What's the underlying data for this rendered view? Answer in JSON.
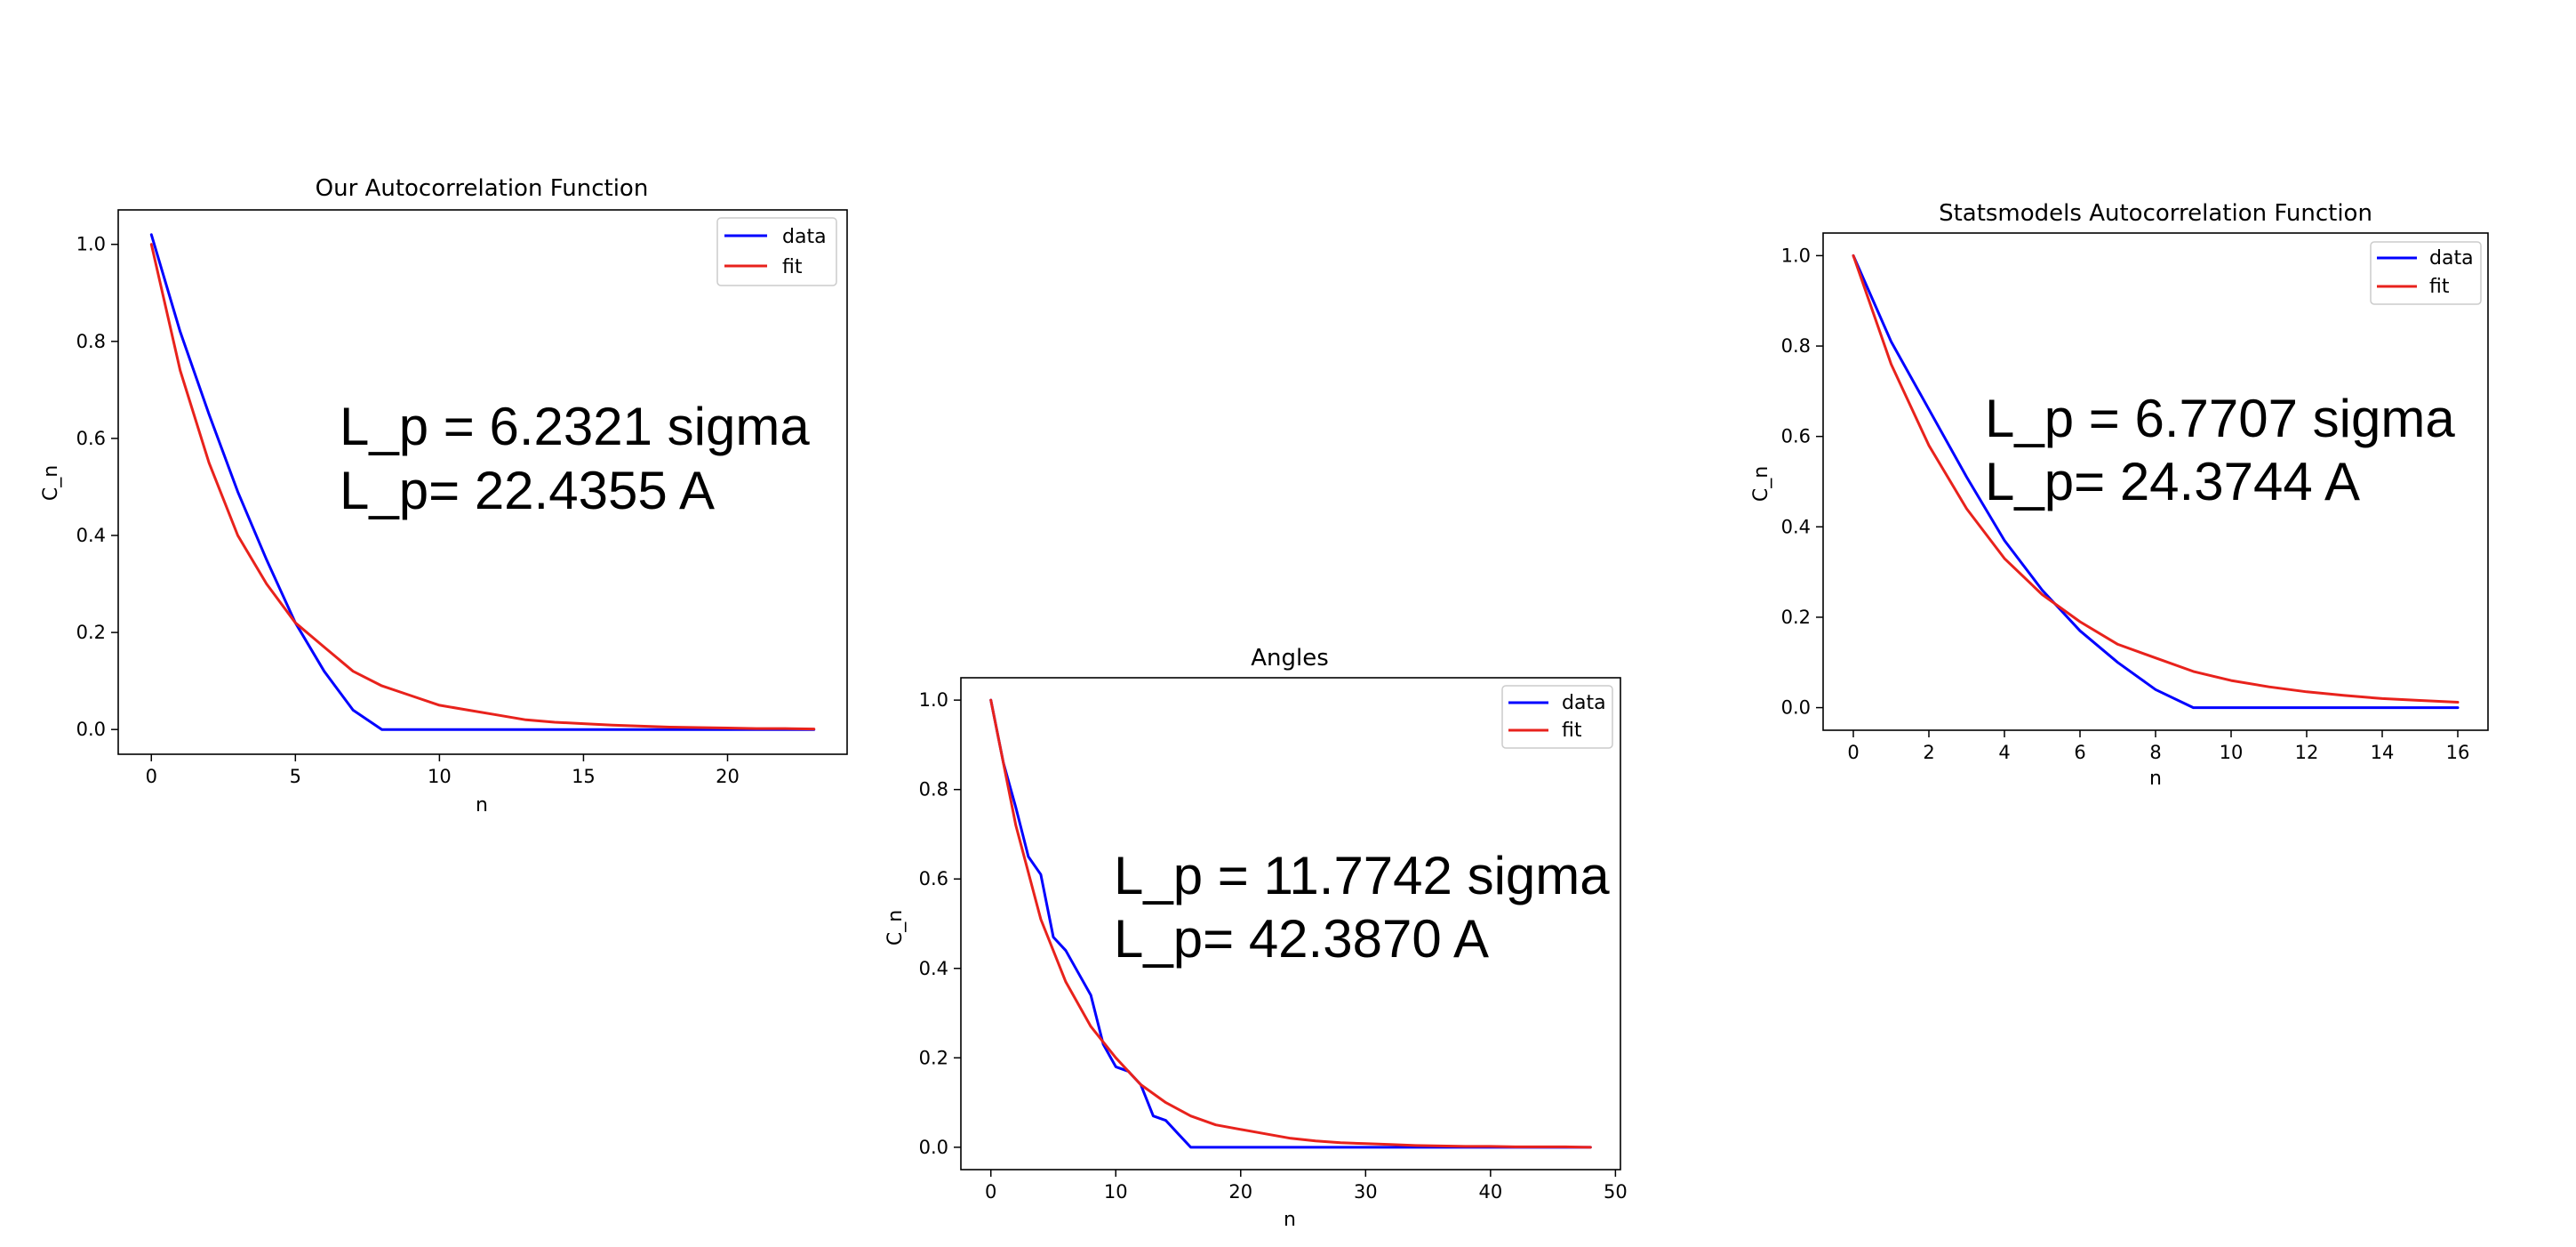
{
  "colors": {
    "data": "#0000ff",
    "fit": "#e8221c",
    "frame": "#000000",
    "background": "#ffffff"
  },
  "chart_data": [
    {
      "type": "line",
      "title": "Our Autocorrelation Function",
      "xlabel": "n",
      "ylabel": "C_n",
      "xlim": [
        -1.15,
        24.15
      ],
      "ylim": [
        -0.051,
        1.071
      ],
      "xticks": [
        0,
        5,
        10,
        15,
        20
      ],
      "yticks": [
        0.0,
        0.2,
        0.4,
        0.6,
        0.8,
        1.0
      ],
      "ytick_labels": [
        "0.0",
        "0.2",
        "0.4",
        "0.6",
        "0.8",
        "1.0"
      ],
      "grid": false,
      "legend": "upper right",
      "annotation": [
        "L_p = 6.2321 sigma",
        "L_p= 22.4355 A"
      ],
      "series": [
        {
          "name": "data",
          "x": [
            0,
            1,
            2,
            3,
            4,
            5,
            6,
            7,
            8,
            9,
            10,
            11,
            12,
            13,
            14,
            15,
            16,
            17,
            18,
            19,
            20,
            21,
            22,
            23
          ],
          "y": [
            1.02,
            0.82,
            0.65,
            0.49,
            0.35,
            0.22,
            0.12,
            0.04,
            0.0,
            0.0,
            0.0,
            0.0,
            0.0,
            0.0,
            0.0,
            0.0,
            0.0,
            0.0,
            0.0,
            0.0,
            0.0,
            0.0,
            0.0,
            0.0
          ]
        },
        {
          "name": "fit",
          "x": [
            0,
            1,
            2,
            3,
            4,
            5,
            6,
            7,
            8,
            9,
            10,
            11,
            12,
            13,
            14,
            15,
            16,
            17,
            18,
            19,
            20,
            21,
            22,
            23
          ],
          "y": [
            1.0,
            0.74,
            0.55,
            0.4,
            0.3,
            0.22,
            0.17,
            0.12,
            0.09,
            0.07,
            0.05,
            0.04,
            0.03,
            0.02,
            0.015,
            0.012,
            0.009,
            0.007,
            0.005,
            0.004,
            0.003,
            0.002,
            0.002,
            0.001
          ]
        }
      ]
    },
    {
      "type": "line",
      "title": "Angles",
      "xlabel": "n",
      "ylabel": "C_n",
      "xlim": [
        -2.4,
        50.4
      ],
      "ylim": [
        -0.05,
        1.05
      ],
      "xticks": [
        0,
        10,
        20,
        30,
        40,
        50
      ],
      "yticks": [
        0.0,
        0.2,
        0.4,
        0.6,
        0.8,
        1.0
      ],
      "ytick_labels": [
        "0.0",
        "0.2",
        "0.4",
        "0.6",
        "0.8",
        "1.0"
      ],
      "grid": false,
      "legend": "upper right",
      "annotation": [
        "L_p = 11.7742 sigma",
        "L_p= 42.3870 A"
      ],
      "series": [
        {
          "name": "data",
          "x": [
            0,
            1,
            2,
            3,
            4,
            5,
            6,
            7,
            8,
            9,
            10,
            11,
            12,
            13,
            14,
            15,
            16,
            17,
            18,
            19,
            20,
            48
          ],
          "y": [
            1.0,
            0.86,
            0.76,
            0.65,
            0.61,
            0.47,
            0.44,
            0.39,
            0.34,
            0.23,
            0.18,
            0.17,
            0.14,
            0.07,
            0.06,
            0.03,
            0.0,
            0.0,
            0.0,
            0.0,
            0.0,
            0.0
          ]
        },
        {
          "name": "fit",
          "x": [
            0,
            2,
            4,
            6,
            8,
            10,
            12,
            14,
            16,
            18,
            20,
            22,
            24,
            26,
            28,
            30,
            32,
            34,
            36,
            38,
            40,
            42,
            44,
            46,
            48
          ],
          "y": [
            1.0,
            0.72,
            0.51,
            0.37,
            0.27,
            0.2,
            0.14,
            0.1,
            0.07,
            0.05,
            0.04,
            0.03,
            0.02,
            0.014,
            0.01,
            0.008,
            0.006,
            0.004,
            0.003,
            0.002,
            0.002,
            0.001,
            0.001,
            0.001,
            0.0
          ]
        }
      ]
    },
    {
      "type": "line",
      "title": "Statsmodels Autocorrelation Function",
      "xlabel": "n",
      "ylabel": "C_n",
      "xlim": [
        -0.8,
        16.8
      ],
      "ylim": [
        -0.05,
        1.05
      ],
      "xticks": [
        0,
        2,
        4,
        6,
        8,
        10,
        12,
        14,
        16
      ],
      "yticks": [
        0.0,
        0.2,
        0.4,
        0.6,
        0.8,
        1.0
      ],
      "ytick_labels": [
        "0.0",
        "0.2",
        "0.4",
        "0.6",
        "0.8",
        "1.0"
      ],
      "grid": false,
      "legend": "upper right",
      "annotation": [
        "L_p = 6.7707 sigma",
        "L_p= 24.3744 A"
      ],
      "series": [
        {
          "name": "data",
          "x": [
            0,
            1,
            2,
            3,
            4,
            5,
            6,
            7,
            8,
            9,
            10,
            11,
            12,
            13,
            14,
            15,
            16
          ],
          "y": [
            1.0,
            0.81,
            0.66,
            0.51,
            0.37,
            0.26,
            0.17,
            0.1,
            0.04,
            0.0,
            0.0,
            0.0,
            0.0,
            0.0,
            0.0,
            0.0,
            0.0
          ]
        },
        {
          "name": "fit",
          "x": [
            0,
            1,
            2,
            3,
            4,
            5,
            6,
            7,
            8,
            9,
            10,
            11,
            12,
            13,
            14,
            15,
            16
          ],
          "y": [
            1.0,
            0.76,
            0.58,
            0.44,
            0.33,
            0.25,
            0.19,
            0.14,
            0.11,
            0.08,
            0.06,
            0.046,
            0.035,
            0.027,
            0.02,
            0.016,
            0.012
          ]
        }
      ]
    }
  ]
}
